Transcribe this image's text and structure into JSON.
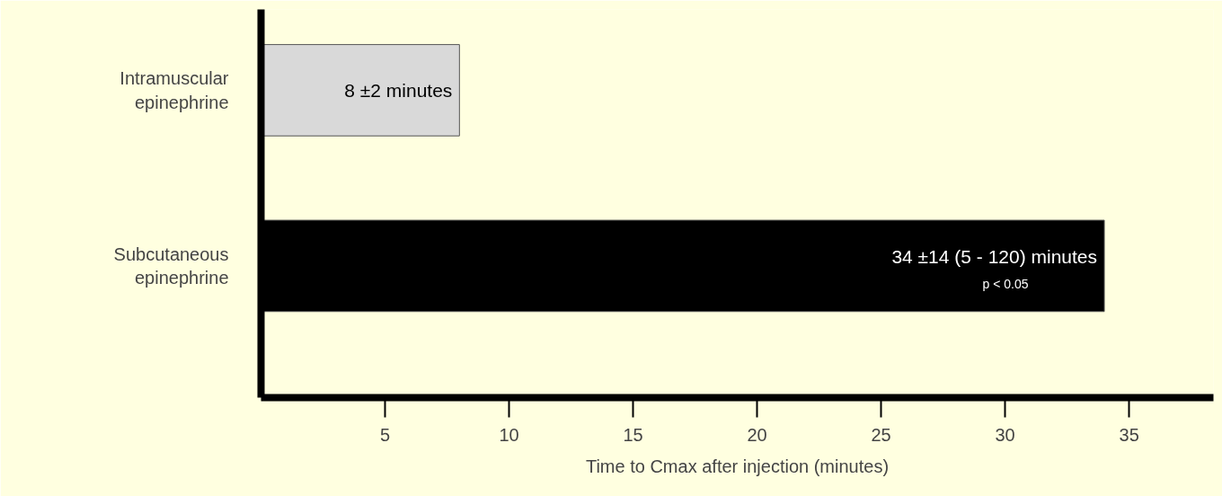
{
  "chart_data": {
    "type": "bar",
    "orientation": "horizontal",
    "xlabel": "Time to Cmax after injection (minutes)",
    "categories": [
      "Intramuscular epinephrine",
      "Subcutaneous epinephrine"
    ],
    "values": [
      8,
      34
    ],
    "colors": [
      "#d9d9d9",
      "#000000"
    ],
    "value_labels": [
      "8 ±2 minutes",
      "34 ±14 (5 - 120) minutes"
    ],
    "annotations": [
      "p < 0.05"
    ],
    "xlim": [
      0,
      38.4
    ],
    "xticks": [
      5,
      10,
      15,
      20,
      25,
      30,
      35
    ],
    "grid": false
  }
}
